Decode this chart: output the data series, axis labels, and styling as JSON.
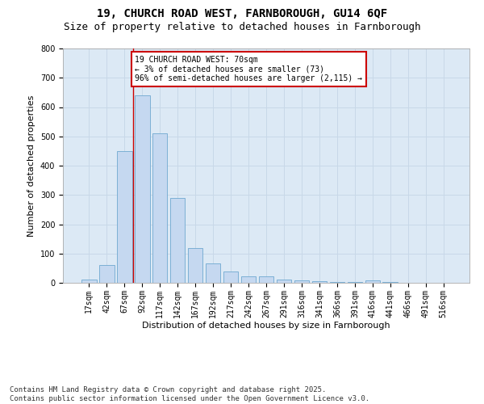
{
  "title_line1": "19, CHURCH ROAD WEST, FARNBOROUGH, GU14 6QF",
  "title_line2": "Size of property relative to detached houses in Farnborough",
  "xlabel": "Distribution of detached houses by size in Farnborough",
  "ylabel": "Number of detached properties",
  "categories": [
    "17sqm",
    "42sqm",
    "67sqm",
    "92sqm",
    "117sqm",
    "142sqm",
    "167sqm",
    "192sqm",
    "217sqm",
    "242sqm",
    "267sqm",
    "291sqm",
    "316sqm",
    "341sqm",
    "366sqm",
    "391sqm",
    "416sqm",
    "441sqm",
    "466sqm",
    "491sqm",
    "516sqm"
  ],
  "values": [
    10,
    60,
    450,
    640,
    510,
    290,
    120,
    65,
    40,
    22,
    22,
    10,
    8,
    5,
    3,
    2,
    8,
    2,
    1,
    1,
    0
  ],
  "bar_color": "#c5d8f0",
  "bar_edge_color": "#6fa8d0",
  "annotation_box_text": "19 CHURCH ROAD WEST: 70sqm\n← 3% of detached houses are smaller (73)\n96% of semi-detached houses are larger (2,115) →",
  "annotation_box_color": "#ffffff",
  "annotation_box_edge_color": "#cc0000",
  "vline_x_index": 2.5,
  "vline_color": "#cc0000",
  "ylim": [
    0,
    800
  ],
  "yticks": [
    0,
    100,
    200,
    300,
    400,
    500,
    600,
    700,
    800
  ],
  "grid_color": "#c8d8e8",
  "background_color": "#dce9f5",
  "fig_background_color": "#ffffff",
  "footer_line1": "Contains HM Land Registry data © Crown copyright and database right 2025.",
  "footer_line2": "Contains public sector information licensed under the Open Government Licence v3.0.",
  "title_fontsize": 10,
  "subtitle_fontsize": 9,
  "label_fontsize": 8,
  "tick_fontsize": 7,
  "footer_fontsize": 6.5,
  "ann_fontsize": 7
}
